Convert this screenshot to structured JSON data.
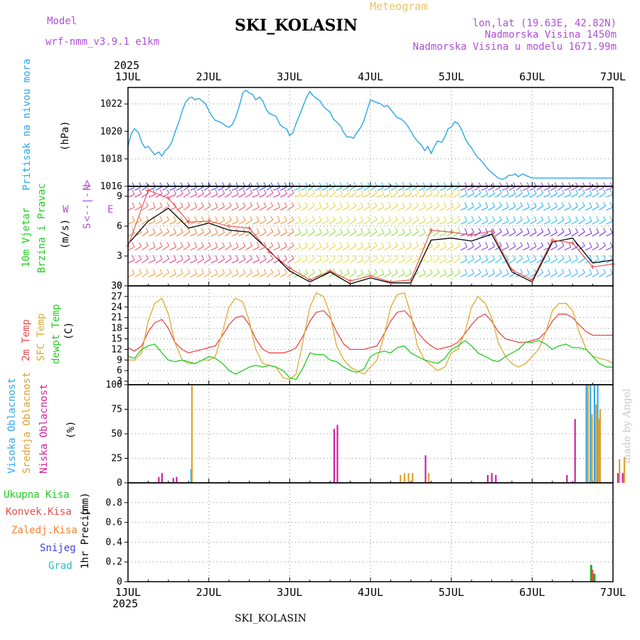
{
  "header": {
    "model_label": "Model",
    "model_name": "wrf-nmm_v3.9.1 e1km",
    "station": "SKI_KOLASIN",
    "product": "Meteogram",
    "location": "lon,lat (19.63E, 42.82N)",
    "elevation": "Nadmorska Visina 1450m",
    "model_elevation": "Nadmorska Visina u modelu 1671.99m",
    "credit": "made by Angel",
    "footer_station": "SKI_KOLASIN"
  },
  "time_axis": {
    "year": "2025",
    "ticks": [
      "1JUL",
      "2JUL",
      "3JUL",
      "4JUL",
      "5JUL",
      "6JUL",
      "7JUL"
    ]
  },
  "colors": {
    "pressure": "#2aa6e8",
    "temp2m": "#e84a4a",
    "sfc": "#e0a830",
    "dewpt": "#22cc22",
    "cloud_high": "#30a8f0",
    "cloud_mid": "#e0a030",
    "cloud_low": "#d020a0",
    "precip_total": "#22aa22",
    "precip_conv": "#e84a4a",
    "precip_frz": "#f08030",
    "snow": "#4040e0",
    "hail": "#20c0c0",
    "wind_gust": "#000000",
    "wind_speed": "#e84a4a"
  },
  "chart_data": [
    {
      "type": "line",
      "panel": "pressure",
      "ylabel_rotated": "Pritisak na nivou mora",
      "unit": "(hPa)",
      "ylim": [
        1016,
        1023.2
      ],
      "yticks": [
        "1016",
        "1018",
        "1020",
        "1022"
      ],
      "x_days": [
        0,
        0.04,
        0.08,
        0.13,
        0.17,
        0.21,
        0.25,
        0.29,
        0.33,
        0.38,
        0.42,
        0.46,
        0.5,
        0.54,
        0.58,
        0.63,
        0.67,
        0.71,
        0.75,
        0.79,
        0.83,
        0.88,
        0.92,
        0.96,
        1.0,
        1.04,
        1.08,
        1.13,
        1.17,
        1.21,
        1.25,
        1.29,
        1.33,
        1.38,
        1.42,
        1.46,
        1.5,
        1.54,
        1.58,
        1.63,
        1.67,
        1.71,
        1.75,
        1.79,
        1.83,
        1.88,
        1.92,
        1.96,
        2.0,
        2.04,
        2.08,
        2.13,
        2.17,
        2.21,
        2.25,
        2.29,
        2.33,
        2.38,
        2.42,
        2.46,
        2.5,
        2.54,
        2.58,
        2.63,
        2.67,
        2.71,
        2.75,
        2.79,
        2.83,
        2.88,
        2.92,
        2.96,
        3.0,
        3.04,
        3.08,
        3.13,
        3.17,
        3.21,
        3.25,
        3.29,
        3.33,
        3.38,
        3.42,
        3.46,
        3.5,
        3.54,
        3.58,
        3.63,
        3.67,
        3.71,
        3.75,
        3.79,
        3.83,
        3.88,
        3.92,
        3.96,
        4.0,
        4.04,
        4.08,
        4.13,
        4.17,
        4.21,
        4.25,
        4.29,
        4.33,
        4.38,
        4.42,
        4.46,
        4.5,
        4.54,
        4.58,
        4.63,
        4.67,
        4.71,
        4.75,
        4.79,
        4.83,
        4.88,
        4.92,
        4.96,
        5.0,
        5.04,
        5.08,
        5.13,
        5.17,
        5.21,
        5.25,
        5.29,
        5.33,
        5.38,
        5.42,
        5.46,
        5.5,
        5.54,
        5.58,
        5.63,
        5.67,
        5.71,
        5.75,
        5.79,
        5.83,
        5.88,
        5.92,
        5.96,
        6.0
      ],
      "series": [
        {
          "values": [
            1018.9,
            1019.8,
            1020.2,
            1019.9,
            1019.2,
            1018.8,
            1018.9,
            1018.6,
            1018.3,
            1018.5,
            1018.2,
            1018.6,
            1018.8,
            1019.2,
            1019.9,
            1020.7,
            1021.5,
            1022.1,
            1022.4,
            1022.5,
            1022.3,
            1022.4,
            1022.2,
            1022.0,
            1021.5,
            1021.1,
            1020.8,
            1020.7,
            1020.6,
            1020.4,
            1020.3,
            1020.5,
            1021.0,
            1021.9,
            1022.8,
            1023.0,
            1022.8,
            1022.7,
            1022.3,
            1022.5,
            1022.2,
            1021.6,
            1021.3,
            1021.2,
            1021.1,
            1020.5,
            1020.3,
            1020.2,
            1019.7,
            1019.9,
            1020.6,
            1021.3,
            1021.9,
            1022.5,
            1022.9,
            1022.6,
            1022.4,
            1022.2,
            1021.8,
            1021.6,
            1021.4,
            1020.9,
            1020.7,
            1020.4,
            1019.9,
            1019.6,
            1019.6,
            1019.5,
            1019.9,
            1020.3,
            1020.8,
            1021.6,
            1022.3,
            1022.2,
            1022.1,
            1022.0,
            1021.8,
            1021.9,
            1021.6,
            1021.3,
            1021.0,
            1020.9,
            1020.7,
            1020.4,
            1020.0,
            1019.6,
            1019.3,
            1019.0,
            1018.6,
            1018.9,
            1018.4,
            1018.9,
            1019.3,
            1019.2,
            1019.6,
            1020.2,
            1020.3,
            1020.7,
            1020.6,
            1020.1,
            1019.5,
            1019.1,
            1018.8,
            1018.4,
            1018.1,
            1017.8,
            1017.5,
            1017.2,
            1017.0,
            1016.8,
            1016.6,
            1016.5,
            1016.6,
            1016.8,
            1016.8,
            1016.9,
            1016.7,
            1016.9,
            1016.8,
            1016.7,
            1016.6,
            1016.6,
            1016.6,
            1016.6,
            1016.6,
            1016.6,
            1016.6,
            1016.6,
            1016.6,
            1016.6,
            1016.6,
            1016.6,
            1016.6,
            1016.6,
            1016.6,
            1016.6,
            1016.6,
            1016.6,
            1016.6,
            1016.6,
            1016.6,
            1016.6,
            1016.6,
            1016.6,
            1016.6
          ]
        }
      ]
    },
    {
      "type": "line",
      "panel": "wind",
      "ylabel_line1": "10m Vjetar",
      "ylabel_line2": "Brzina i Pravac",
      "unit": "(m/s)",
      "compass": [
        "N",
        "<--|-->",
        "W",
        "E",
        "S"
      ],
      "ylim": [
        0,
        10
      ],
      "yticks": [
        "0",
        "3",
        "6",
        "9"
      ],
      "x_days": [
        0,
        0.25,
        0.5,
        0.75,
        1.0,
        1.25,
        1.5,
        1.75,
        2.0,
        2.25,
        2.5,
        2.75,
        3.0,
        3.25,
        3.5,
        3.75,
        4.0,
        4.25,
        4.5,
        4.75,
        5.0,
        5.25,
        5.5,
        5.75,
        6.0
      ],
      "series": [
        {
          "name": "",
          "values": [
            4.2,
            6.5,
            7.8,
            5.8,
            6.3,
            5.6,
            5.4,
            3.5,
            1.5,
            0.4,
            1.4,
            0.2,
            0.8,
            0.3,
            0.3,
            4.6,
            4.8,
            4.5,
            5.2,
            1.4,
            0.4,
            4.4,
            4.8,
            2.3,
            2.6
          ]
        },
        {
          "name": "",
          "values": [
            4.0,
            9.6,
            8.8,
            6.4,
            6.5,
            6.0,
            5.8,
            3.4,
            1.8,
            0.6,
            1.5,
            0.5,
            1.0,
            0.4,
            0.6,
            5.6,
            5.4,
            5.1,
            5.5,
            1.6,
            0.6,
            4.6,
            4.3,
            1.9,
            2.2
          ]
        }
      ]
    },
    {
      "type": "line",
      "panel": "temperature",
      "ylabel_t2m": "2m Temp",
      "ylabel_sfc": "SFC Temp",
      "ylabel_dew": "dewpt Temp",
      "unit": "(C)",
      "ylim": [
        2,
        30
      ],
      "yticks": [
        "3",
        "6",
        "9",
        "12",
        "15",
        "18",
        "21",
        "24",
        "27",
        "30"
      ],
      "x_days": [
        0,
        0.08,
        0.17,
        0.25,
        0.33,
        0.42,
        0.5,
        0.58,
        0.67,
        0.75,
        0.83,
        0.92,
        1.0,
        1.08,
        1.17,
        1.25,
        1.33,
        1.42,
        1.5,
        1.58,
        1.67,
        1.75,
        1.83,
        1.92,
        2.0,
        2.08,
        2.17,
        2.25,
        2.33,
        2.42,
        2.5,
        2.58,
        2.67,
        2.75,
        2.83,
        2.92,
        3.0,
        3.08,
        3.17,
        3.25,
        3.33,
        3.42,
        3.5,
        3.58,
        3.67,
        3.75,
        3.83,
        3.92,
        4.0,
        4.08,
        4.17,
        4.25,
        4.33,
        4.42,
        4.5,
        4.58,
        4.67,
        4.75,
        4.83,
        4.92,
        5.0,
        5.08,
        5.17,
        5.25,
        5.33,
        5.42,
        5.5,
        5.58,
        5.67,
        5.75,
        5.83,
        5.92,
        6.0
      ],
      "series": [
        {
          "name": "2m Temp",
          "values": [
            12.5,
            11.5,
            13,
            17,
            19.5,
            20.5,
            18,
            14,
            12,
            11,
            11.5,
            12,
            12.5,
            13,
            16,
            19,
            21,
            21.5,
            19,
            15,
            12,
            11,
            11,
            11,
            11.5,
            12.5,
            16,
            20,
            22.5,
            23,
            21,
            17,
            13.5,
            12,
            12,
            12,
            12.5,
            13,
            16.5,
            20,
            22.5,
            23,
            21,
            17,
            14.5,
            13,
            12,
            12.5,
            13,
            14,
            16.5,
            19,
            21,
            22,
            20,
            17,
            15,
            14.5,
            14,
            14,
            14.5,
            15,
            17,
            20,
            22,
            22,
            21,
            19,
            17,
            16,
            16,
            16,
            16
          ]
        },
        {
          "name": "SFC Temp",
          "values": [
            9,
            9,
            11,
            20,
            25,
            26.5,
            22,
            14,
            9,
            8,
            8,
            9,
            9,
            10,
            17,
            24,
            26.5,
            25.5,
            20,
            12,
            8,
            7.5,
            7,
            4,
            3.5,
            5,
            15,
            24,
            28,
            27,
            22,
            13,
            9,
            7,
            6,
            5,
            7,
            9,
            16,
            24,
            27.5,
            28,
            22,
            13,
            9,
            7.5,
            6,
            7,
            11,
            12,
            17,
            24,
            27,
            25,
            21,
            14,
            10,
            8,
            7,
            8,
            10,
            12,
            17,
            23,
            25,
            25,
            23,
            17,
            12,
            10,
            9.5,
            9,
            8
          ]
        },
        {
          "name": "dewpt Temp",
          "values": [
            10,
            9.5,
            12,
            13,
            13.5,
            11,
            9,
            8.5,
            9,
            8.5,
            8,
            9,
            10,
            9.5,
            8,
            6,
            5,
            6,
            7,
            7.5,
            7,
            7.5,
            7,
            6,
            4,
            3.5,
            7,
            11,
            10.5,
            10.5,
            9,
            8.5,
            7,
            6,
            5.5,
            6.5,
            10,
            11,
            11.5,
            11,
            12.5,
            13,
            11,
            10,
            9,
            8.5,
            8,
            9.5,
            12,
            13,
            14.5,
            13,
            11,
            10,
            9,
            8.5,
            10,
            11,
            12,
            14,
            14,
            14.5,
            13.5,
            12,
            13,
            13.5,
            12.5,
            12.5,
            12,
            10,
            8,
            7,
            7
          ]
        }
      ]
    },
    {
      "type": "bar",
      "panel": "cloud",
      "ylabel_high": "Visoka Oblacnost",
      "ylabel_mid": "Srednja Oblacnost",
      "ylabel_low": "Niska Oblacnost",
      "unit": "(%)",
      "ylim": [
        0,
        100
      ],
      "yticks": [
        "0",
        "25",
        "50",
        "75",
        "100"
      ],
      "series": [
        {
          "name": "Visoka Oblacnost",
          "x_days": [
            0.78,
            5.67,
            5.72,
            5.77,
            5.81,
            5.83
          ],
          "values": [
            14,
            100,
            100,
            100,
            100,
            65
          ]
        },
        {
          "name": "Srednja Oblacnost",
          "x_days": [
            0.79,
            3.37,
            3.42,
            3.47,
            3.52,
            3.72,
            5.69,
            5.74,
            5.79,
            5.82,
            5.84,
            6.08,
            6.14
          ],
          "values": [
            99,
            8,
            10,
            10,
            10,
            10,
            100,
            70,
            80,
            65,
            75,
            24,
            26
          ]
        },
        {
          "name": "Niska Oblacnost",
          "x_days": [
            0.38,
            0.42,
            0.56,
            0.6,
            2.55,
            2.59,
            3.68,
            4.45,
            4.5,
            4.55,
            5.43,
            5.53,
            6.06,
            6.12
          ],
          "values": [
            6,
            10,
            5,
            6,
            55,
            59,
            28,
            8,
            10,
            8,
            8,
            65,
            10,
            10
          ]
        }
      ]
    },
    {
      "type": "bar",
      "panel": "precip",
      "ylabel": "1hr Precip",
      "unit": "(mm)",
      "legend": [
        "Ukupna Kisa",
        "Konvek.Kisa",
        "Zaledj.Kisa",
        "Snijeg",
        "Grad"
      ],
      "ylim": [
        0,
        1.0
      ],
      "yticks": [
        "0",
        "0.2",
        "0.4",
        "0.6",
        "0.8"
      ],
      "series": [
        {
          "name": "Ukupna Kisa",
          "x_days": [
            5.73,
            5.77
          ],
          "values": [
            0.17,
            0.08
          ]
        },
        {
          "name": "Konvek.Kisa",
          "x_days": [
            5.745
          ],
          "values": [
            0.12
          ]
        }
      ]
    }
  ]
}
